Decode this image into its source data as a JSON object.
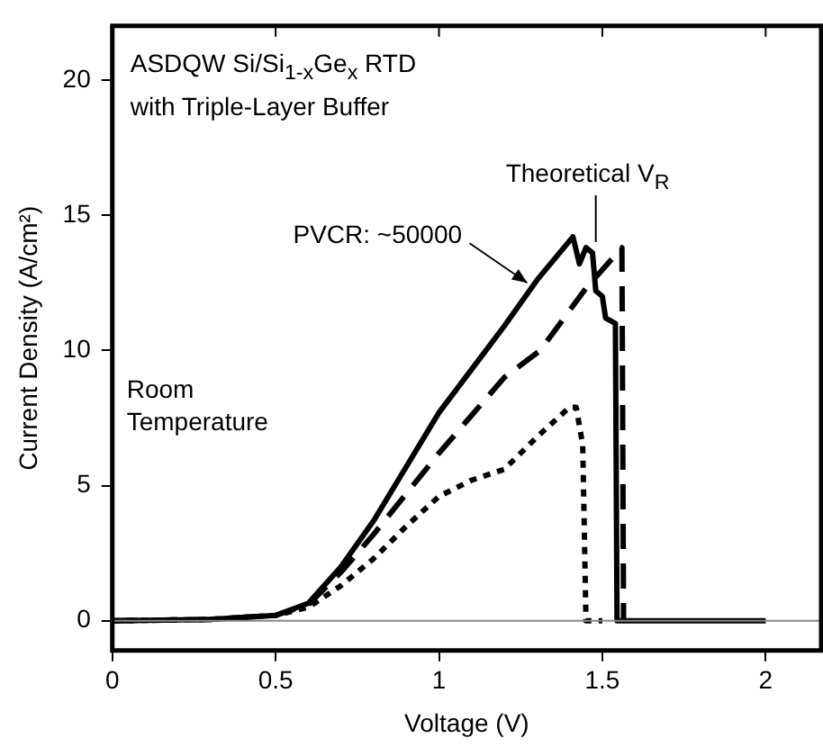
{
  "chart_data": {
    "type": "line",
    "title": "ASDQW Si/Si$_{1-x}$Ge$_{x}$ RTD",
    "subtitle": "with Triple-Layer Buffer",
    "xlabel": "Voltage (V)",
    "ylabel": "Current Density (A/cm²)",
    "xlim": [
      0,
      2.17
    ],
    "xticks": [
      0,
      0.5,
      1,
      1.5,
      2
    ],
    "ylim": [
      -1.1,
      22
    ],
    "yticks": [
      0,
      5,
      10,
      15,
      20
    ],
    "grid": false,
    "legend": false,
    "marker": "none",
    "annotations": [
      {
        "text": "PVCR: ~50000",
        "x": 1.27,
        "y": 12.5
      },
      "Theoretical V$_{R}$",
      "Room Temperature"
    ],
    "ref_lines": [
      {
        "axis": "y",
        "value": 0,
        "color": "#888888"
      }
    ],
    "series": [
      {
        "color": "#000000",
        "line_style": "solid",
        "x": [
          0,
          0.3,
          0.5,
          0.6,
          0.7,
          0.8,
          0.9,
          1.0,
          1.1,
          1.2,
          1.3,
          1.41,
          1.43,
          1.45,
          1.47,
          1.48,
          1.5,
          1.51,
          1.54,
          1.545,
          1.7,
          2.0
        ],
        "values": [
          0,
          0.05,
          0.2,
          0.65,
          2.0,
          3.7,
          5.7,
          7.7,
          9.3,
          10.9,
          12.6,
          14.2,
          13.2,
          13.8,
          13.6,
          12.2,
          12.0,
          11.2,
          11.0,
          0,
          0,
          0
        ]
      },
      {
        "color": "#000000",
        "line_style": "dashed",
        "x": [
          0,
          0.3,
          0.5,
          0.6,
          0.7,
          0.8,
          0.9,
          1.0,
          1.1,
          1.2,
          1.31,
          1.45,
          1.56,
          1.565
        ],
        "values": [
          0,
          0.05,
          0.2,
          0.6,
          1.8,
          3.2,
          4.7,
          6.2,
          7.6,
          9.0,
          10.0,
          12.3,
          13.8,
          0
        ]
      },
      {
        "color": "#000000",
        "line_style": "dotted",
        "x": [
          0,
          0.3,
          0.5,
          0.6,
          0.7,
          0.8,
          0.9,
          1.0,
          1.1,
          1.2,
          1.3,
          1.4,
          1.42,
          1.44,
          1.45,
          1.5
        ],
        "values": [
          0,
          0.05,
          0.2,
          0.5,
          1.3,
          2.3,
          3.5,
          4.6,
          5.2,
          5.6,
          6.8,
          7.9,
          7.9,
          6.5,
          0,
          0
        ]
      }
    ]
  }
}
